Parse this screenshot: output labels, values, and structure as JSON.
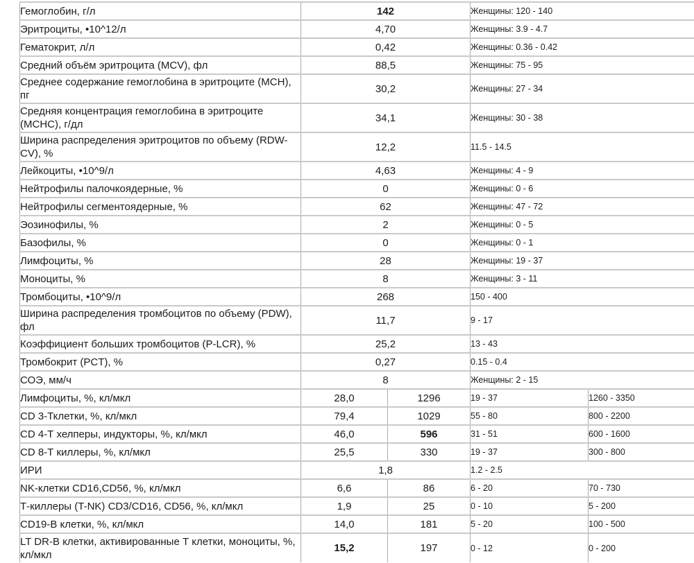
{
  "document": {
    "kind": "lab-results-table",
    "language": "ru",
    "columns": {
      "parameter": "name",
      "values": "result",
      "references": "reference-range"
    },
    "colors": {
      "row_border": "#c9c9c9",
      "column_border": "#ababab",
      "text": "#1c1c1c",
      "background": "#ffffff"
    }
  },
  "table": {
    "rows": [
      {
        "name": "Гемоглобин, г/л",
        "lines": 1,
        "values": [
          {
            "text": "142",
            "bold": true
          }
        ],
        "refs": [
          "Женщины: 120 - 140"
        ]
      },
      {
        "name": "Эритроциты, •10^12/л",
        "lines": 1,
        "values": [
          {
            "text": "4,70"
          }
        ],
        "refs": [
          "Женщины: 3.9 - 4.7"
        ]
      },
      {
        "name": "Гематокрит, л/л",
        "lines": 1,
        "values": [
          {
            "text": "0,42"
          }
        ],
        "refs": [
          "Женщины: 0.36 - 0.42"
        ]
      },
      {
        "name": "Средний объём эритроцита (MCV), фл",
        "lines": 1,
        "values": [
          {
            "text": "88,5"
          }
        ],
        "refs": [
          "Женщины: 75 - 95"
        ]
      },
      {
        "name": "Среднее содержание гемоглобина в эритроците (MCH), пг",
        "lines": 2,
        "values": [
          {
            "text": "30,2"
          }
        ],
        "refs": [
          "Женщины: 27 - 34"
        ]
      },
      {
        "name": "Средняя концентрация гемоглобина в эритроците (MCHC), г/дл",
        "lines": 2,
        "values": [
          {
            "text": "34,1"
          }
        ],
        "refs": [
          "Женщины: 30 - 38"
        ]
      },
      {
        "name": "Ширина распределения эритроцитов по объему (RDW-CV), %",
        "lines": 2,
        "values": [
          {
            "text": "12,2"
          }
        ],
        "refs": [
          "11.5 - 14.5"
        ]
      },
      {
        "name": "Лейкоциты, •10^9/л",
        "lines": 1,
        "values": [
          {
            "text": "4,63"
          }
        ],
        "refs": [
          "Женщины: 4 - 9"
        ]
      },
      {
        "name": "Нейтрофилы палочкоядерные, %",
        "lines": 1,
        "values": [
          {
            "text": "0"
          }
        ],
        "refs": [
          "Женщины: 0 - 6"
        ]
      },
      {
        "name": "Нейтрофилы сегментоядерные, %",
        "lines": 1,
        "values": [
          {
            "text": "62"
          }
        ],
        "refs": [
          "Женщины: 47 - 72"
        ]
      },
      {
        "name": "Эозинофилы, %",
        "lines": 1,
        "values": [
          {
            "text": "2"
          }
        ],
        "refs": [
          "Женщины: 0 - 5"
        ]
      },
      {
        "name": "Базофилы, %",
        "lines": 1,
        "values": [
          {
            "text": "0"
          }
        ],
        "refs": [
          "Женщины: 0 - 1"
        ]
      },
      {
        "name": "Лимфоциты, %",
        "lines": 1,
        "values": [
          {
            "text": "28"
          }
        ],
        "refs": [
          "Женщины: 19 - 37"
        ]
      },
      {
        "name": "Моноциты, %",
        "lines": 1,
        "values": [
          {
            "text": "8"
          }
        ],
        "refs": [
          "Женщины: 3 - 11"
        ]
      },
      {
        "name": "Тромбоциты, •10^9/л",
        "lines": 1,
        "values": [
          {
            "text": "268"
          }
        ],
        "refs": [
          "150 - 400"
        ]
      },
      {
        "name": "Ширина распределения тромбоцитов по объему (PDW), фл",
        "lines": 2,
        "values": [
          {
            "text": "11,7"
          }
        ],
        "refs": [
          "9 - 17"
        ]
      },
      {
        "name": "Коэффициент больших тромбоцитов (P-LCR), %",
        "lines": 1,
        "values": [
          {
            "text": "25,2"
          }
        ],
        "refs": [
          "13 - 43"
        ]
      },
      {
        "name": "Тромбокрит (PCT), %",
        "lines": 1,
        "values": [
          {
            "text": "0,27"
          }
        ],
        "refs": [
          "0.15 - 0.4"
        ]
      },
      {
        "name": "СОЭ, мм/ч",
        "lines": 1,
        "values": [
          {
            "text": "8"
          }
        ],
        "refs": [
          "Женщины: 2 - 15"
        ]
      },
      {
        "name": "Лимфоциты, %, кл/мкл",
        "lines": 1,
        "values": [
          {
            "text": "28,0"
          },
          {
            "text": "1296"
          }
        ],
        "refs": [
          "19 - 37",
          "1260 - 3350"
        ]
      },
      {
        "name": "CD 3-Тклетки, %, кл/мкл",
        "lines": 1,
        "values": [
          {
            "text": "79,4"
          },
          {
            "text": "1029"
          }
        ],
        "refs": [
          "55 - 80",
          "800 - 2200"
        ]
      },
      {
        "name": "CD 4-Т хелперы, индукторы, %, кл/мкл",
        "lines": 1,
        "values": [
          {
            "text": "46,0"
          },
          {
            "text": "596",
            "bold": true
          }
        ],
        "refs": [
          "31 - 51",
          "600 - 1600"
        ]
      },
      {
        "name": "CD 8-Т киллеры, %, кл/мкл",
        "lines": 1,
        "values": [
          {
            "text": "25,5"
          },
          {
            "text": "330"
          }
        ],
        "refs": [
          "19 - 37",
          "300 - 800"
        ]
      },
      {
        "name": "ИРИ",
        "lines": 1,
        "values": [
          {
            "text": "1,8"
          }
        ],
        "refs": [
          "1.2 - 2.5"
        ]
      },
      {
        "name": "NK-клетки CD16,CD56, %, кл/мкл",
        "lines": 1,
        "values": [
          {
            "text": "6,6"
          },
          {
            "text": "86"
          }
        ],
        "refs": [
          "6 - 20",
          "70 - 730"
        ]
      },
      {
        "name": "Т-киллеры (T-NK) CD3/CD16, CD56, %, кл/мкл",
        "lines": 1,
        "values": [
          {
            "text": "1,9"
          },
          {
            "text": "25"
          }
        ],
        "refs": [
          "0 - 10",
          "5 - 200"
        ]
      },
      {
        "name": "CD19-B клетки, %, кл/мкл",
        "lines": 1,
        "values": [
          {
            "text": "14,0"
          },
          {
            "text": "181"
          }
        ],
        "refs": [
          "5 - 20",
          "100 - 500"
        ]
      },
      {
        "name": "LT DR-B клетки, активированные Т клетки, моноциты, %, кл/мкл",
        "lines": 2,
        "values": [
          {
            "text": "15,2",
            "bold": true
          },
          {
            "text": "197"
          }
        ],
        "refs": [
          "0 - 12",
          "0 - 200"
        ]
      }
    ]
  }
}
